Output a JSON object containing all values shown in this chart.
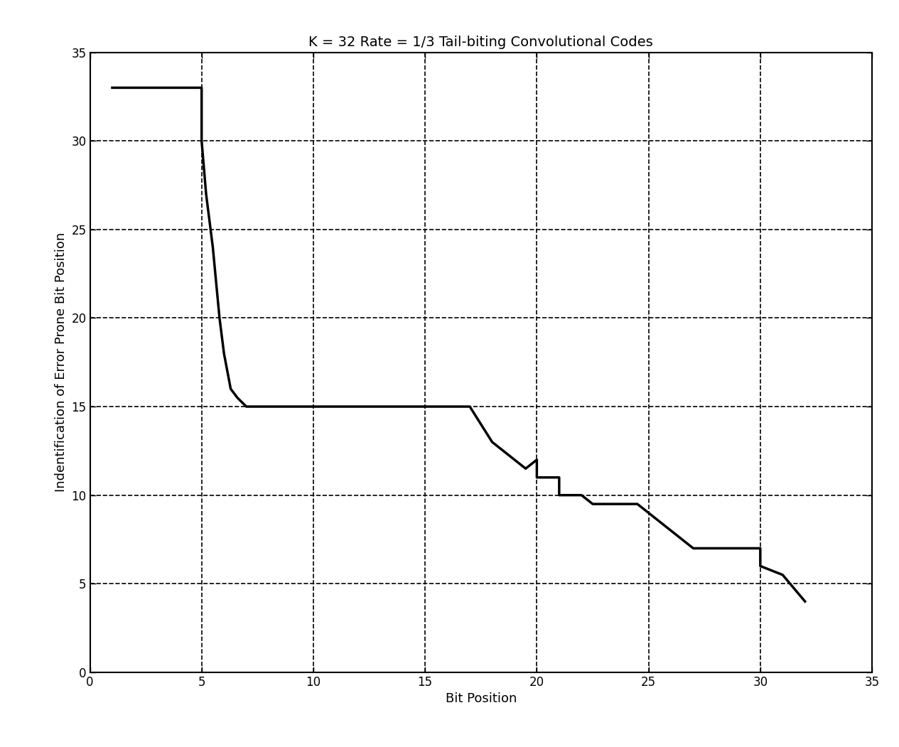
{
  "title": "K = 32 Rate = 1/3 Tail-biting Convolutional Codes",
  "xlabel": "Bit Position",
  "ylabel": "Indentification of Error Prone Bit Position",
  "xlim": [
    0,
    35
  ],
  "ylim": [
    0,
    35
  ],
  "xticks": [
    0,
    5,
    10,
    15,
    20,
    25,
    30,
    35
  ],
  "yticks": [
    0,
    5,
    10,
    15,
    20,
    25,
    30,
    35
  ],
  "line_color": "#000000",
  "line_width": 2.5,
  "bg_color": "#ffffff",
  "grid_color": "#000000",
  "grid_alpha": 1.0,
  "grid_linewidth": 1.2,
  "title_fontsize": 14,
  "label_fontsize": 13,
  "tick_fontsize": 12,
  "x_data": [
    1,
    5,
    5,
    5.2,
    5.5,
    5.8,
    6.0,
    6.3,
    6.6,
    7.0,
    7,
    15,
    15,
    17,
    17.5,
    18,
    18.5,
    19,
    19.5,
    20,
    20,
    21,
    21,
    22,
    22.5,
    23,
    23.5,
    24,
    24.5,
    25,
    25,
    27,
    27,
    28,
    28,
    30,
    30,
    31,
    32
  ],
  "y_data": [
    33,
    33,
    30,
    27,
    24,
    20,
    18,
    16,
    15.5,
    15,
    15,
    15,
    15,
    15,
    14,
    13,
    12.5,
    12,
    11.5,
    12,
    11,
    11,
    10,
    10,
    9.5,
    9.5,
    9.5,
    9.5,
    9.5,
    9,
    9,
    7,
    7,
    7,
    7,
    7,
    6,
    5.5,
    4
  ]
}
